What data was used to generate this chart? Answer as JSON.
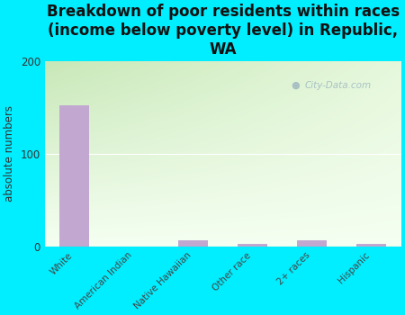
{
  "title": "Breakdown of poor residents within races\n(income below poverty level) in Republic,\nWA",
  "categories": [
    "White",
    "American Indian",
    "Native Hawaiian",
    "Other race",
    "2+ races",
    "Hispanic"
  ],
  "values": [
    152,
    0,
    6,
    3,
    6,
    3
  ],
  "bar_color": "#c2a8d0",
  "ylabel": "absolute numbers",
  "ylim": [
    0,
    200
  ],
  "yticks": [
    0,
    100,
    200
  ],
  "bg_outer": "#00eeff",
  "bg_plot_top_left": "#c8e8b8",
  "bg_plot_top_right": "#e8f8e0",
  "bg_plot_bottom": "#f4fdf0",
  "title_fontsize": 12,
  "watermark": "City-Data.com"
}
